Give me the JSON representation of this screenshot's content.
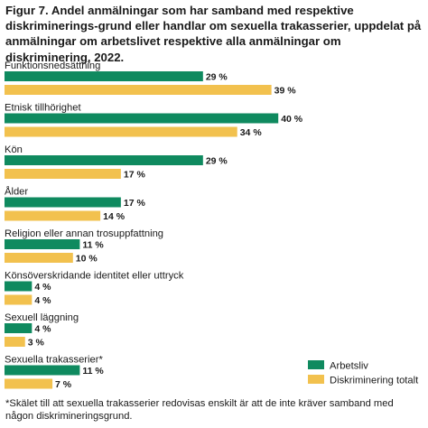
{
  "figure_label": "Figur 7.",
  "title_text": "Andel anmälningar som har samband med respektive diskriminerings-grund eller handlar om sexuella trakasserier, uppdelat på anmälningar om arbetslivet respektive alla anmälningar om diskriminering, 2022.",
  "footnote": "*Skälet till att sexuella trakasserier redovisas enskilt är att de inte kräver samband med någon diskrimineringsgrund.",
  "colors": {
    "arbetsliv": "#0f8a5f",
    "total": "#f2c14e"
  },
  "chart_data": {
    "type": "bar",
    "orientation": "horizontal",
    "unit": "%",
    "categories": [
      "Funktionsnedsättning",
      "Etnisk tillhörighet",
      "Kön",
      "Ålder",
      "Religion eller annan trosuppfattning",
      "Könsöverskridande identitet eller uttryck",
      "Sexuell läggning",
      "Sexuella trakasserier*"
    ],
    "series": [
      {
        "name": "Arbetsliv",
        "values": [
          29,
          40,
          29,
          17,
          11,
          4,
          4,
          11
        ]
      },
      {
        "name": "Diskriminering totalt",
        "values": [
          39,
          34,
          17,
          14,
          10,
          4,
          3,
          7
        ]
      }
    ],
    "value_labels": {
      "Arbetsliv": [
        "29 %",
        "40 %",
        "29 %",
        "17 %",
        "11 %",
        "4 %",
        "4 %",
        "11 %"
      ],
      "Diskriminering totalt": [
        "39 %",
        "34 %",
        "17 %",
        "14 %",
        "10 %",
        "4 %",
        "3 %",
        "7 %"
      ]
    },
    "legend": [
      "Arbetsliv",
      "Diskriminering totalt"
    ],
    "legend_position": "bottom-right",
    "grid": false
  }
}
